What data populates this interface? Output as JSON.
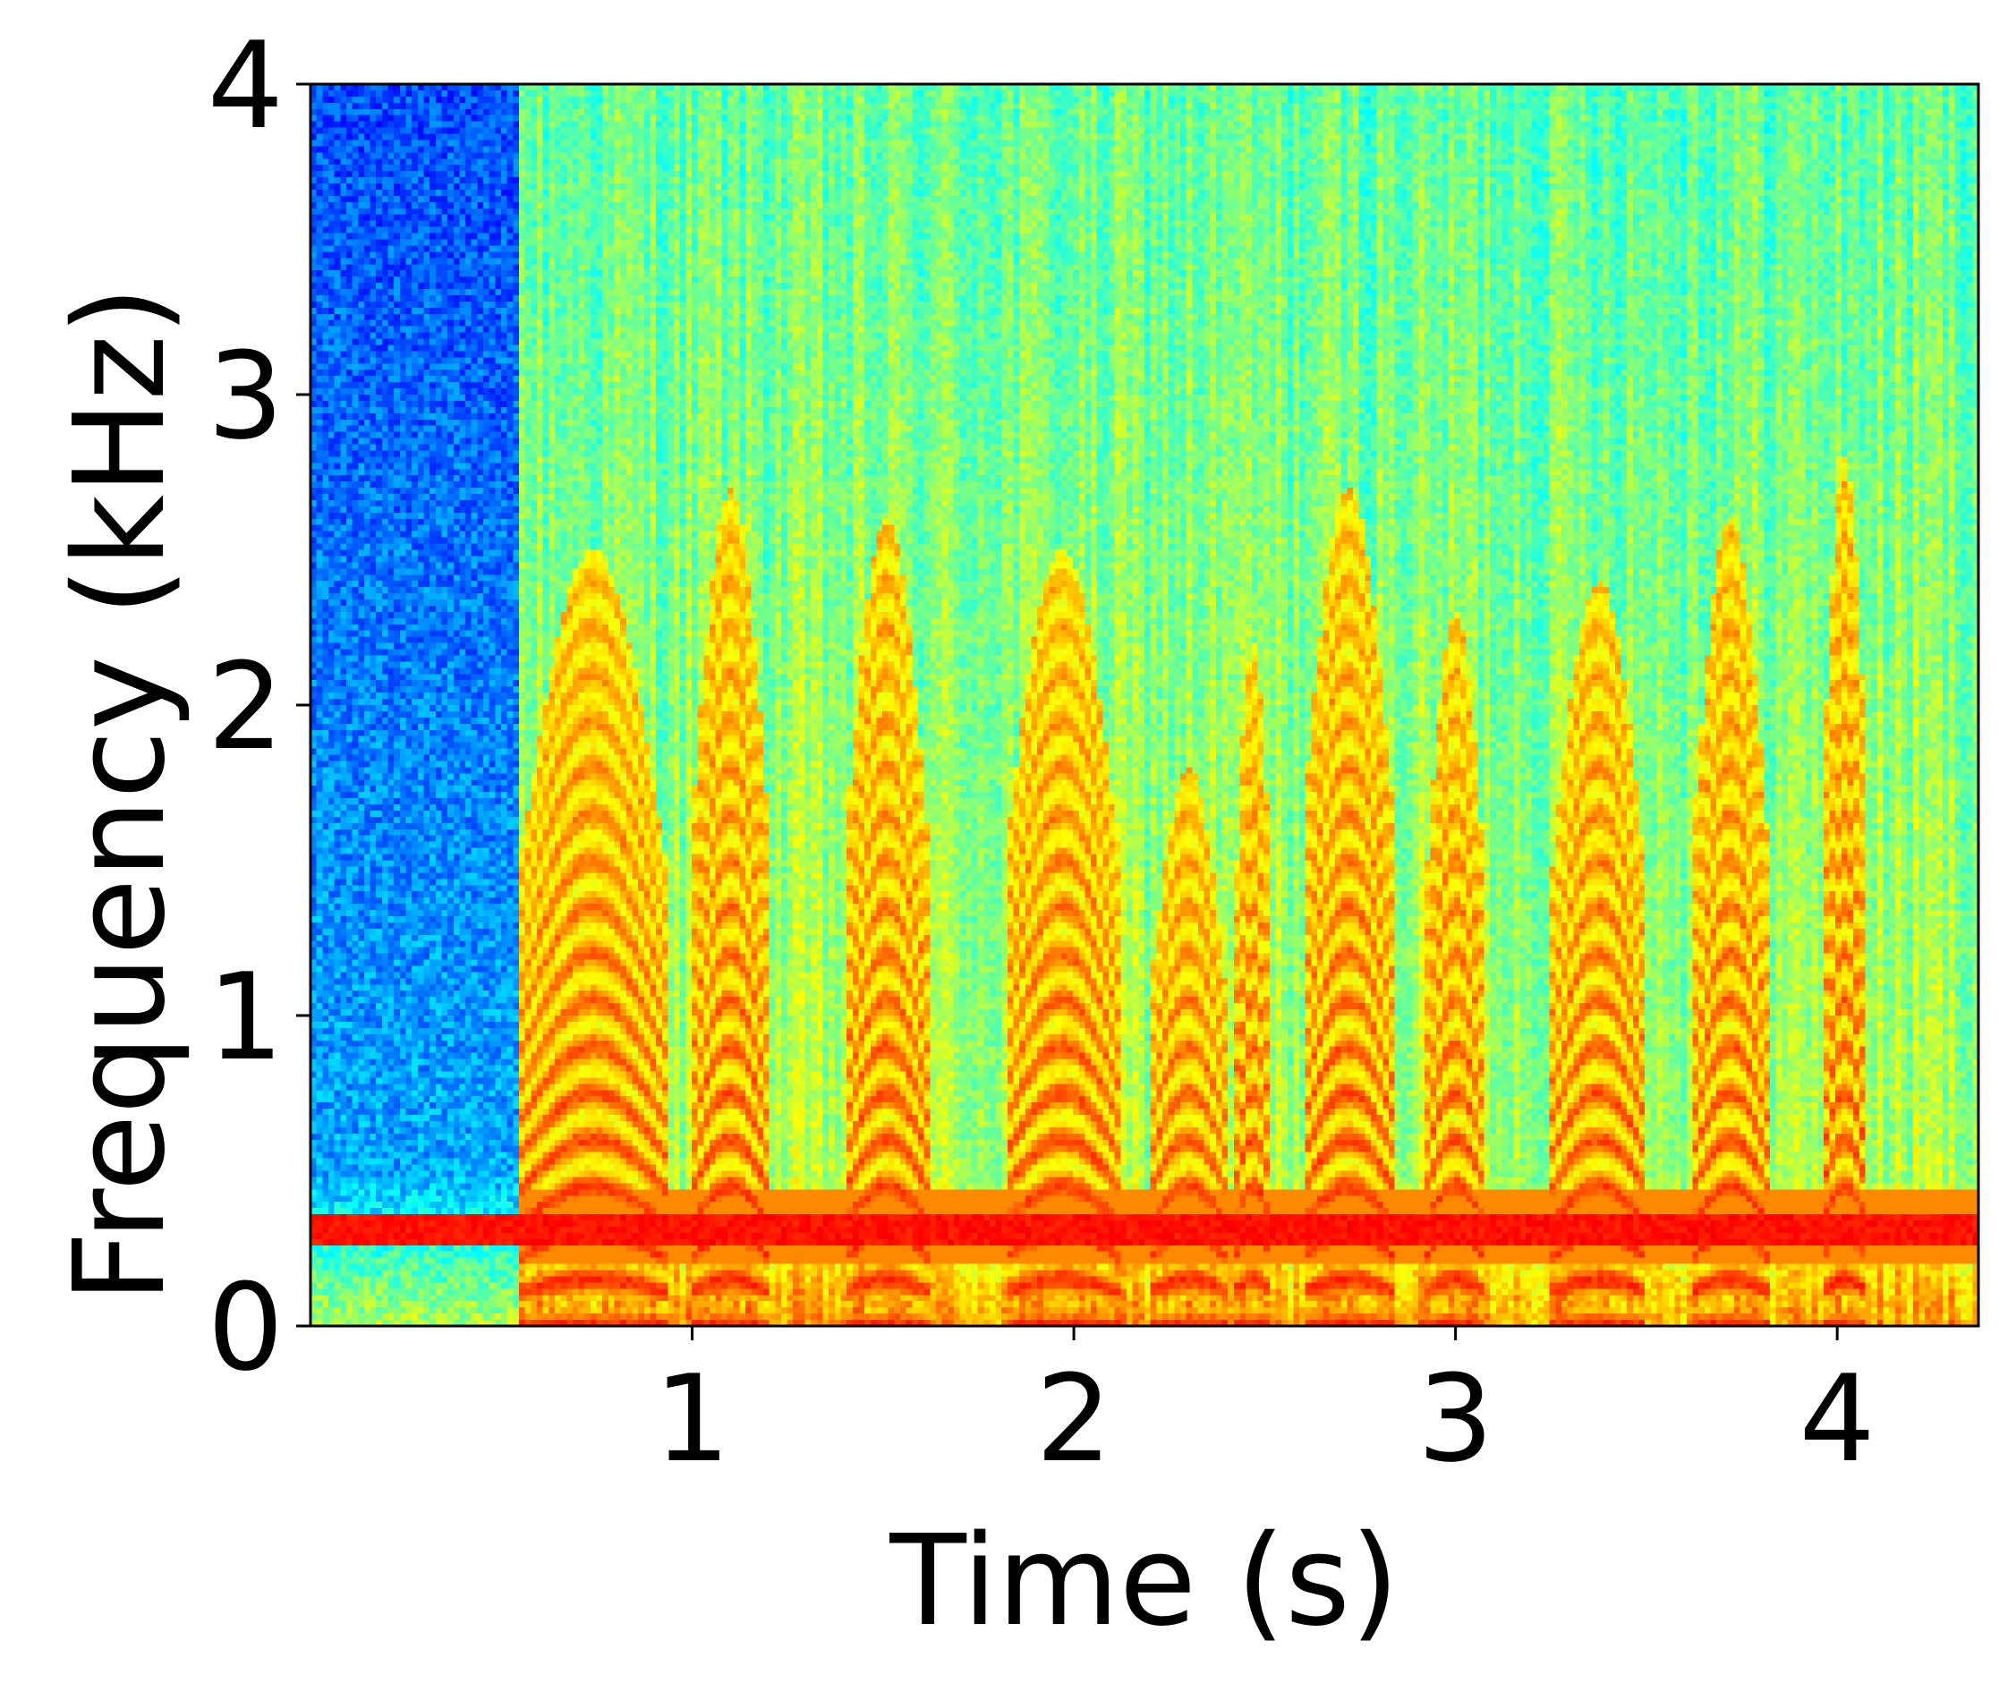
{
  "chart_data": {
    "type": "heatmap",
    "title": "",
    "xlabel": "Time (s)",
    "ylabel": "Frequency (kHz)",
    "xlim": [
      0,
      4.37
    ],
    "ylim": [
      0,
      4
    ],
    "x_ticks": [
      1,
      2,
      3,
      4
    ],
    "x_tick_labels": [
      "1",
      "2",
      "3",
      "4"
    ],
    "y_ticks": [
      0,
      1,
      2,
      3,
      4
    ],
    "y_tick_labels": [
      "0",
      "1",
      "2",
      "3",
      "4"
    ],
    "colormap": "jet",
    "grid": false,
    "legend": "none",
    "colorbar": false,
    "noise_only_interval_s": [
      0,
      0.55
    ],
    "steady_tone_khz": 0.32,
    "voiced_segments": [
      {
        "start_s": 0.55,
        "end_s": 0.93,
        "max_khz": 2.5
      },
      {
        "start_s": 1.0,
        "end_s": 1.2,
        "max_khz": 2.7
      },
      {
        "start_s": 1.4,
        "end_s": 1.62,
        "max_khz": 2.6
      },
      {
        "start_s": 1.82,
        "end_s": 2.12,
        "max_khz": 2.5
      },
      {
        "start_s": 2.2,
        "end_s": 2.4,
        "max_khz": 1.8
      },
      {
        "start_s": 2.42,
        "end_s": 2.52,
        "max_khz": 2.2
      },
      {
        "start_s": 2.6,
        "end_s": 2.84,
        "max_khz": 2.7
      },
      {
        "start_s": 2.92,
        "end_s": 3.08,
        "max_khz": 2.3
      },
      {
        "start_s": 3.25,
        "end_s": 3.5,
        "max_khz": 2.4
      },
      {
        "start_s": 3.62,
        "end_s": 3.82,
        "max_khz": 2.6
      },
      {
        "start_s": 3.96,
        "end_s": 4.08,
        "max_khz": 2.8
      }
    ]
  }
}
